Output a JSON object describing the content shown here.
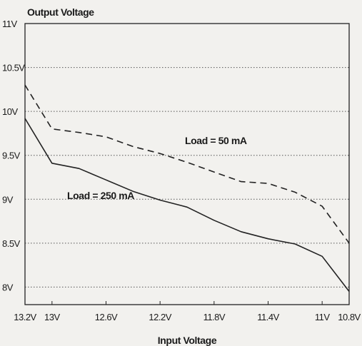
{
  "chart_data": {
    "type": "line",
    "title": "",
    "xlabel": "Input Voltage",
    "ylabel": "Output Voltage",
    "x_reversed": true,
    "xlim": [
      13.2,
      10.8
    ],
    "ylim": [
      7.8,
      11.0
    ],
    "grid": true,
    "x_ticks": [
      {
        "value": 13.2,
        "label": "13.2V"
      },
      {
        "value": 13.0,
        "label": "13V"
      },
      {
        "value": 12.6,
        "label": "12.6V"
      },
      {
        "value": 12.2,
        "label": "12.2V"
      },
      {
        "value": 11.8,
        "label": "11.8V"
      },
      {
        "value": 11.4,
        "label": "11.4V"
      },
      {
        "value": 11.0,
        "label": "11V"
      },
      {
        "value": 10.8,
        "label": "10.8V"
      }
    ],
    "y_ticks": [
      {
        "value": 11.0,
        "label": "11V"
      },
      {
        "value": 10.5,
        "label": "10.5V"
      },
      {
        "value": 10.0,
        "label": "10V"
      },
      {
        "value": 9.5,
        "label": "9.5V"
      },
      {
        "value": 9.0,
        "label": "9V"
      },
      {
        "value": 8.5,
        "label": "8.5V"
      },
      {
        "value": 8.0,
        "label": "8V"
      }
    ],
    "series": [
      {
        "name": "Load = 50 mA",
        "style": "dashed",
        "color": "#222222",
        "points": [
          [
            13.2,
            10.3
          ],
          [
            13.0,
            9.8
          ],
          [
            12.8,
            9.76
          ],
          [
            12.6,
            9.71
          ],
          [
            12.4,
            9.6
          ],
          [
            12.2,
            9.52
          ],
          [
            12.0,
            9.42
          ],
          [
            11.8,
            9.31
          ],
          [
            11.6,
            9.2
          ],
          [
            11.4,
            9.18
          ],
          [
            11.2,
            9.08
          ],
          [
            11.0,
            8.92
          ],
          [
            10.8,
            8.5
          ]
        ]
      },
      {
        "name": "Load = 250 mA",
        "style": "solid",
        "color": "#222222",
        "points": [
          [
            13.2,
            9.92
          ],
          [
            13.0,
            9.41
          ],
          [
            12.8,
            9.35
          ],
          [
            12.6,
            9.22
          ],
          [
            12.4,
            9.09
          ],
          [
            12.2,
            8.99
          ],
          [
            12.0,
            8.91
          ],
          [
            11.8,
            8.76
          ],
          [
            11.6,
            8.63
          ],
          [
            11.4,
            8.55
          ],
          [
            11.2,
            8.49
          ],
          [
            11.0,
            8.35
          ],
          [
            10.8,
            7.95
          ]
        ]
      }
    ]
  }
}
